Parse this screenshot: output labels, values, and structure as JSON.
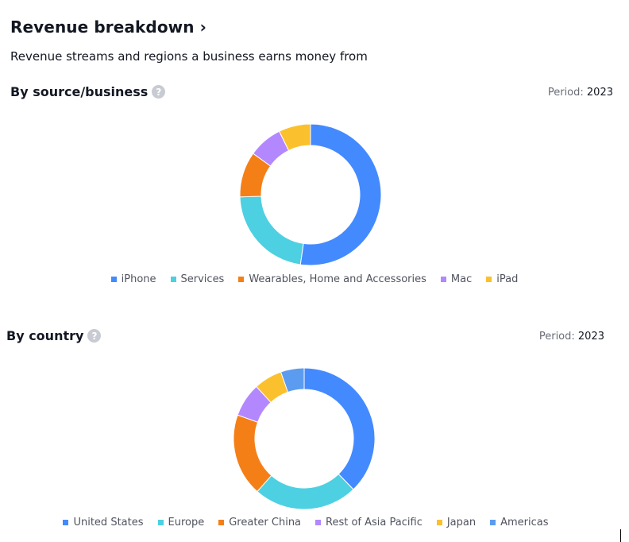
{
  "header": {
    "title": "Revenue breakdown ›",
    "subtitle": "Revenue streams and regions a business earns money from"
  },
  "period_label": "Period:",
  "help_icon_glyph": "?",
  "chart_data": [
    {
      "type": "pie",
      "donut": true,
      "title": "By source/business",
      "period": "2023",
      "legend_position": "bottom",
      "categories": [
        "iPhone",
        "Services",
        "Wearables, Home and Accessories",
        "Mac",
        "iPad"
      ],
      "values": [
        52.3,
        22.2,
        10.4,
        7.8,
        7.3
      ],
      "colors": [
        "#448aff",
        "#4dd0e1",
        "#f57f17",
        "#b388ff",
        "#fbc02d"
      ]
    },
    {
      "type": "pie",
      "donut": true,
      "title": "By country",
      "period": "2023",
      "legend_position": "bottom",
      "categories": [
        "United States",
        "Europe",
        "Greater China",
        "Rest of Asia Pacific",
        "Japan",
        "Americas"
      ],
      "values": [
        38.0,
        24.0,
        19.0,
        7.8,
        6.5,
        5.4
      ],
      "colors": [
        "#448aff",
        "#4dd0e1",
        "#f57f17",
        "#b388ff",
        "#fbc02d",
        "#5b9cf0"
      ]
    }
  ]
}
